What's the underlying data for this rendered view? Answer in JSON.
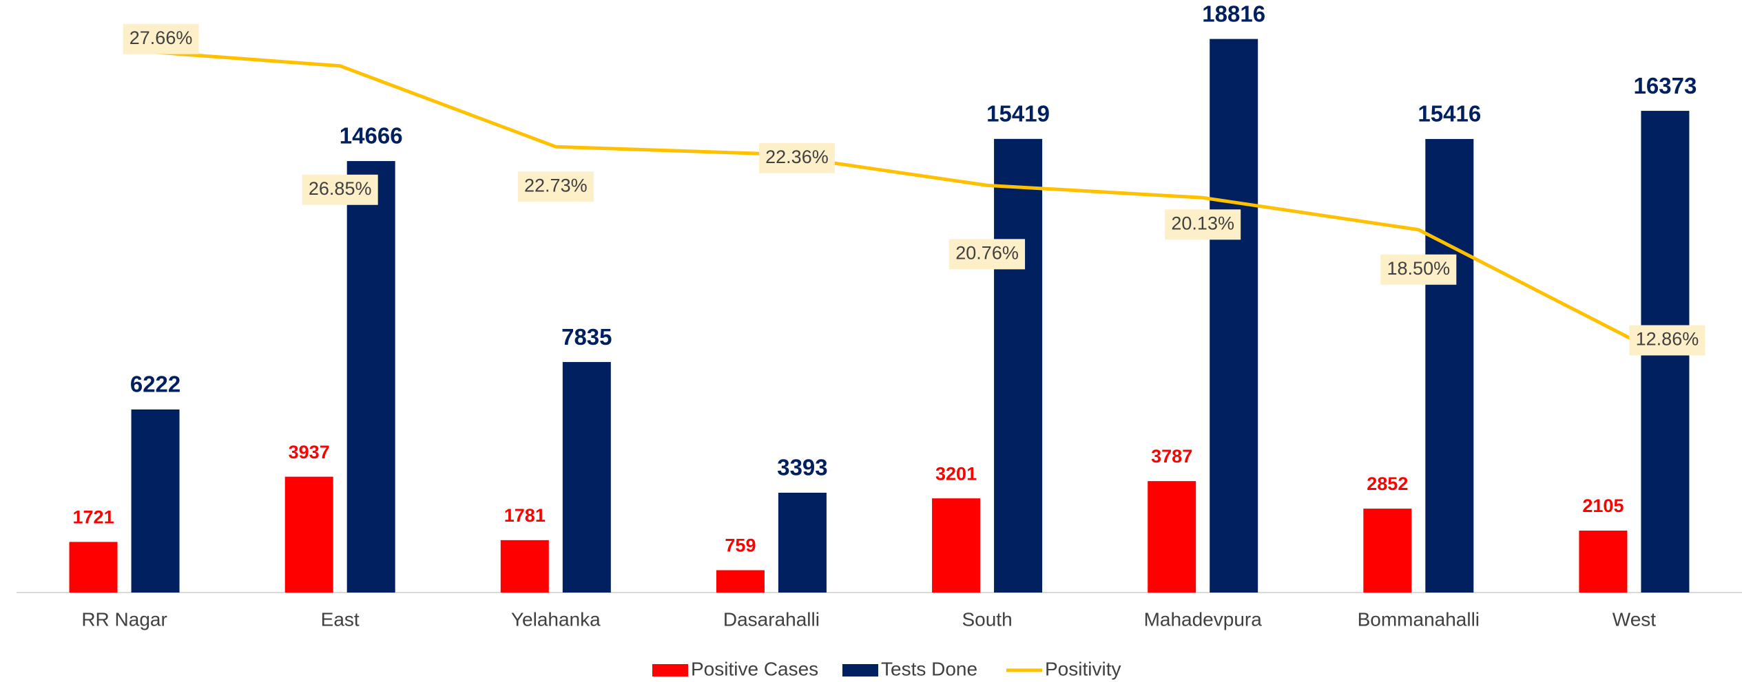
{
  "chart_data": {
    "type": "bar-line",
    "categories": [
      "RR Nagar",
      "East",
      "Yelahanka",
      "Dasarahalli",
      "South",
      "Mahadevpura",
      "Bommanahalli",
      "West"
    ],
    "series": [
      {
        "name": "Positive Cases",
        "type": "bar",
        "color": "#ff0000",
        "values": [
          1721,
          3937,
          1781,
          759,
          3201,
          3787,
          2852,
          2105
        ]
      },
      {
        "name": "Tests Done",
        "type": "bar",
        "color": "#002060",
        "values": [
          6222,
          14666,
          7835,
          3393,
          15419,
          18816,
          15416,
          16373
        ]
      },
      {
        "name": "Positivity",
        "type": "line",
        "axis": "y2",
        "color": "#ffc000",
        "values": [
          27.66,
          26.85,
          22.73,
          22.36,
          20.76,
          20.13,
          18.5,
          12.86
        ],
        "value_labels": [
          "27.66%",
          "26.85%",
          "22.73%",
          "22.36%",
          "20.76%",
          "20.13%",
          "18.50%",
          "12.86%"
        ]
      }
    ],
    "ylim": [
      0,
      20000
    ],
    "y2lim": [
      0,
      30
    ],
    "legend": "bottom"
  }
}
